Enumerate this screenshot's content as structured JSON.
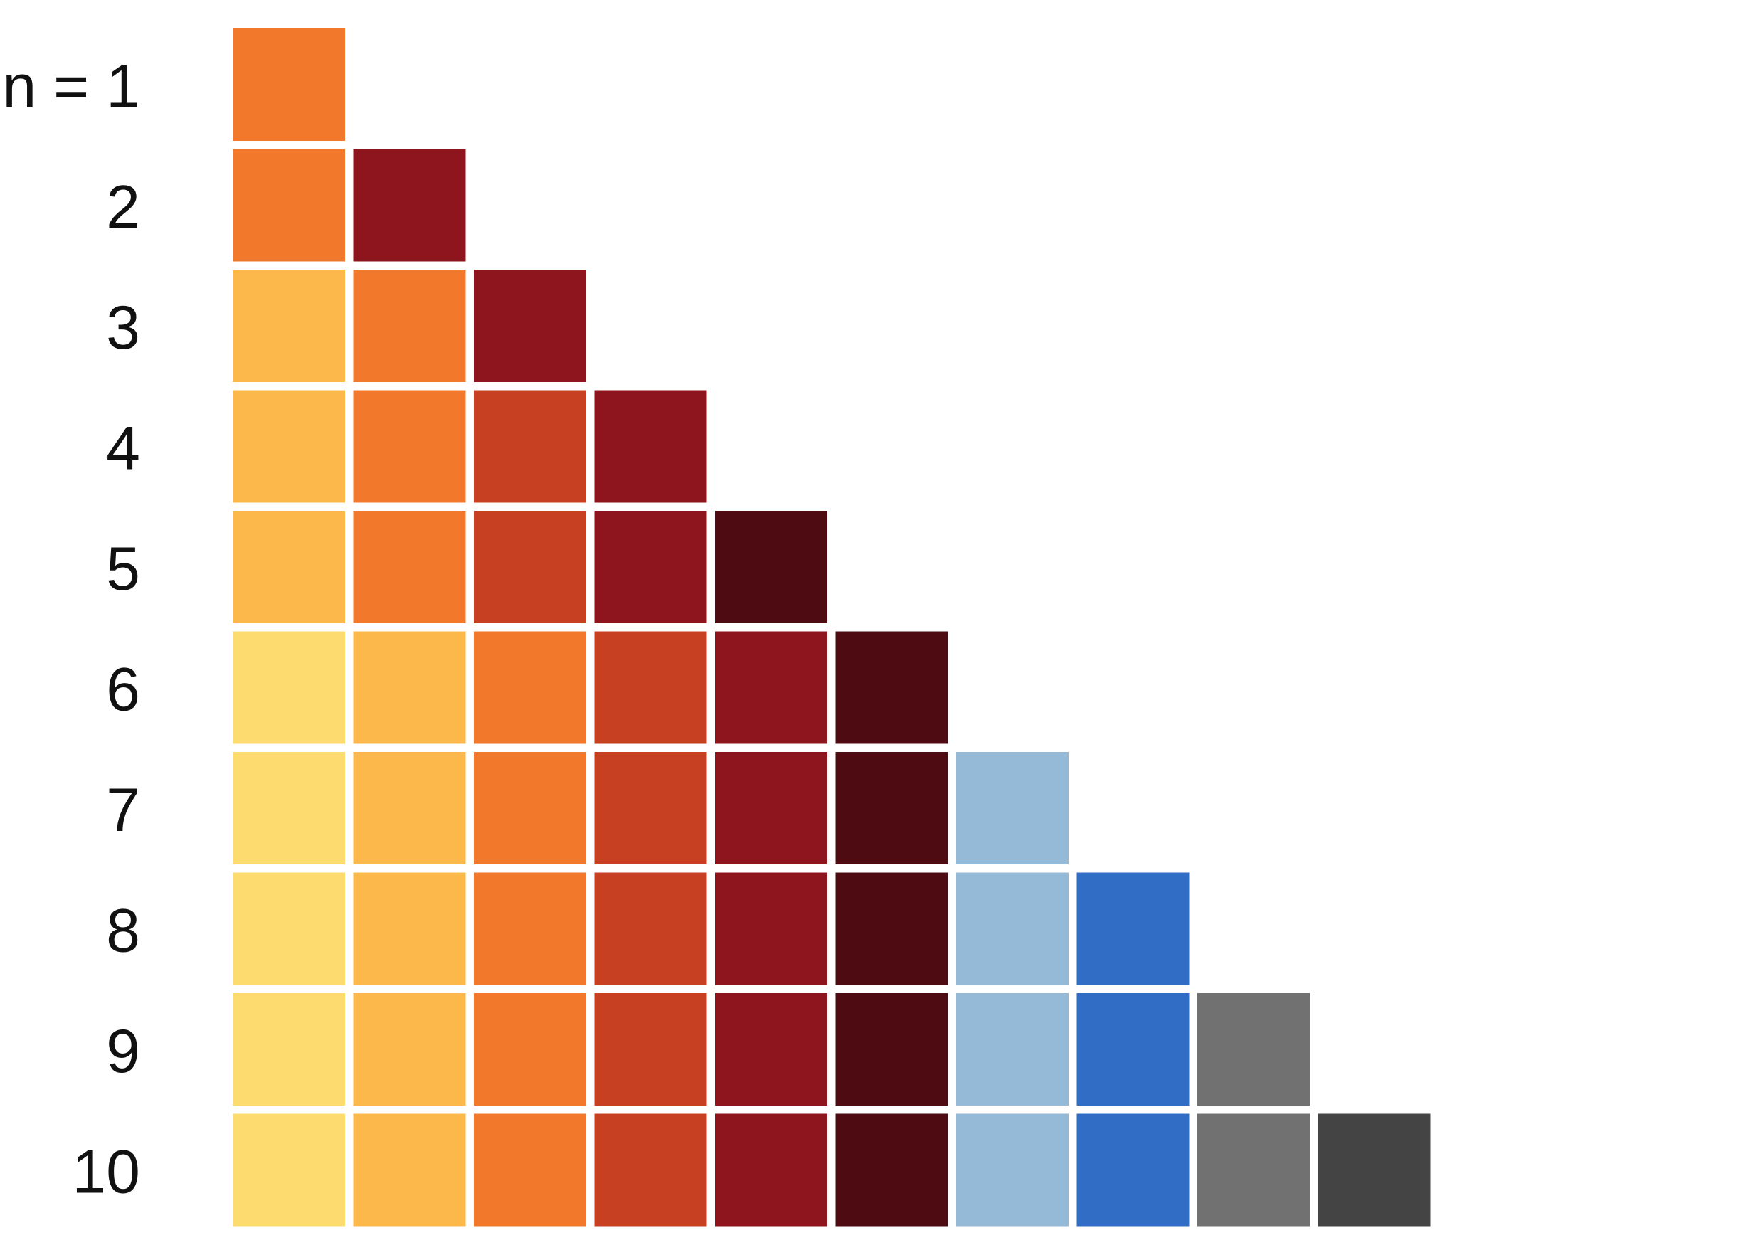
{
  "chart_data": {
    "type": "table",
    "title": "",
    "xlabel": "",
    "ylabel": "",
    "grid": false,
    "row_labels": [
      "n = 1",
      "2",
      "3",
      "4",
      "5",
      "6",
      "7",
      "8",
      "9",
      "10"
    ],
    "rows": [
      {
        "n": 1,
        "colors": [
          "#F2792B"
        ]
      },
      {
        "n": 2,
        "colors": [
          "#F2792B",
          "#8E141E"
        ]
      },
      {
        "n": 3,
        "colors": [
          "#FDB84B",
          "#F2792B",
          "#8E141E"
        ]
      },
      {
        "n": 4,
        "colors": [
          "#FDB84B",
          "#F2792B",
          "#C74021",
          "#8E141E"
        ]
      },
      {
        "n": 5,
        "colors": [
          "#FDB84B",
          "#F2792B",
          "#C74021",
          "#8E141E",
          "#4E0B12"
        ]
      },
      {
        "n": 6,
        "colors": [
          "#FEDB6E",
          "#FDB84B",
          "#F2792B",
          "#C74021",
          "#8E141E",
          "#4E0B12"
        ]
      },
      {
        "n": 7,
        "colors": [
          "#FEDB6E",
          "#FDB84B",
          "#F2792B",
          "#C74021",
          "#8E141E",
          "#4E0B12",
          "#94BAD8"
        ]
      },
      {
        "n": 8,
        "colors": [
          "#FEDB6E",
          "#FDB84B",
          "#F2792B",
          "#C74021",
          "#8E141E",
          "#4E0B12",
          "#94BAD8",
          "#316CC5"
        ]
      },
      {
        "n": 9,
        "colors": [
          "#FEDB6E",
          "#FDB84B",
          "#F2792B",
          "#C74021",
          "#8E141E",
          "#4E0B12",
          "#94BAD8",
          "#316CC5",
          "#717171"
        ]
      },
      {
        "n": 10,
        "colors": [
          "#FEDB6E",
          "#FDB84B",
          "#F2792B",
          "#C74021",
          "#8E141E",
          "#4E0B12",
          "#94BAD8",
          "#316CC5",
          "#717171",
          "#444444"
        ]
      }
    ]
  }
}
